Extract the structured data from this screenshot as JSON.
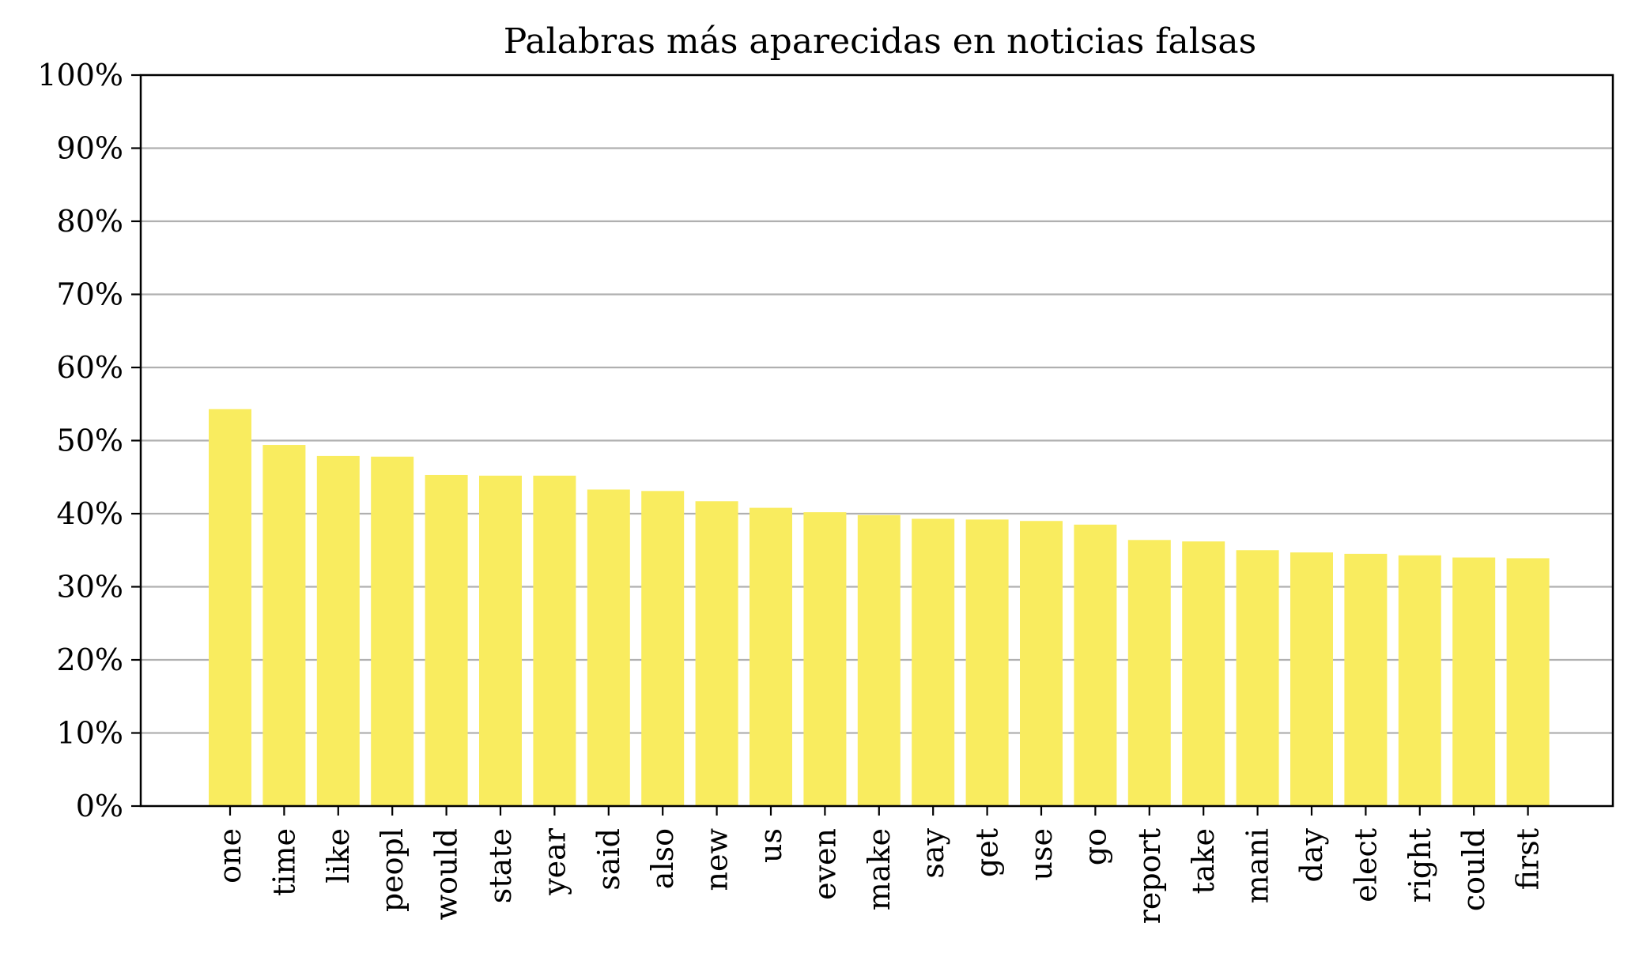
{
  "chart_data": {
    "type": "bar",
    "title": "Palabras más aparecidas en noticias falsas",
    "xlabel": "",
    "ylabel": "",
    "categories": [
      "one",
      "time",
      "like",
      "peopl",
      "would",
      "state",
      "year",
      "said",
      "also",
      "new",
      "us",
      "even",
      "make",
      "say",
      "get",
      "use",
      "go",
      "report",
      "take",
      "mani",
      "day",
      "elect",
      "right",
      "could",
      "first"
    ],
    "values": [
      54.3,
      49.4,
      47.9,
      47.8,
      45.3,
      45.2,
      45.2,
      43.3,
      43.1,
      41.7,
      40.8,
      40.2,
      39.8,
      39.3,
      39.2,
      39.0,
      38.5,
      36.4,
      36.2,
      35.0,
      34.7,
      34.5,
      34.3,
      34.0,
      33.9
    ],
    "ylim": [
      0,
      100
    ],
    "yticks": [
      "0%",
      "10%",
      "20%",
      "30%",
      "40%",
      "50%",
      "60%",
      "70%",
      "80%",
      "90%",
      "100%"
    ],
    "grid": "horizontal",
    "bar_color": "#f9ec5f",
    "grid_color": "#b0b0b0"
  }
}
